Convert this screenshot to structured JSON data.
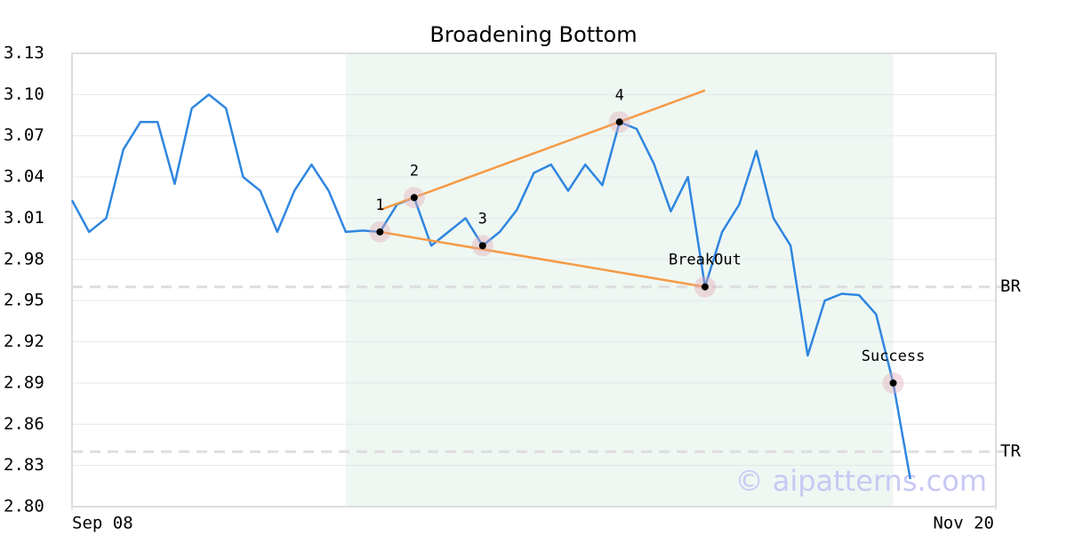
{
  "chart_data": {
    "type": "line",
    "title": "Broadening Bottom",
    "x": [
      0,
      1,
      2,
      3,
      4,
      5,
      6,
      7,
      8,
      9,
      10,
      11,
      12,
      13,
      14,
      15,
      16,
      17,
      18,
      19,
      20,
      21,
      22,
      23,
      24,
      25,
      26,
      27,
      28,
      29,
      30,
      31,
      32,
      33,
      34,
      35,
      36,
      37,
      38,
      39,
      40,
      41,
      42,
      43,
      44,
      45,
      46,
      47,
      48,
      49
    ],
    "series": [
      {
        "color": "#2f86e0",
        "values": [
          3.023,
          3.0,
          3.01,
          3.06,
          3.08,
          3.08,
          3.035,
          3.09,
          3.1,
          3.09,
          3.04,
          3.03,
          3.0,
          3.03,
          3.049,
          3.03,
          3.0,
          3.001,
          3.0,
          3.02,
          3.025,
          2.99,
          3.0,
          3.01,
          2.99,
          3.0,
          3.016,
          3.043,
          3.049,
          3.03,
          3.049,
          3.034,
          3.08,
          3.075,
          3.05,
          3.015,
          3.04,
          2.96,
          3.0,
          3.02,
          3.059,
          3.01,
          2.99,
          2.91,
          2.95,
          2.955,
          2.954,
          2.94,
          2.89,
          2.82
        ]
      }
    ],
    "xlim": [
      0,
      54
    ],
    "xticks": [
      {
        "value": 0,
        "label": "Sep 08"
      },
      {
        "value": 54,
        "label": "Nov 20"
      }
    ],
    "ylim": [
      2.8,
      3.13
    ],
    "yticks": [
      3.13,
      {
        "value": 3.1,
        "label": "3.10"
      },
      3.07,
      3.04,
      3.01,
      2.98,
      2.95,
      2.92,
      2.89,
      2.86,
      2.83,
      {
        "value": 2.8,
        "label": "2.80"
      }
    ],
    "grid": true,
    "pattern_region": [
      16,
      48
    ],
    "points": [
      {
        "label": "1",
        "x": 18,
        "value": 3.0
      },
      {
        "label": "2",
        "x": 20,
        "value": 3.025
      },
      {
        "label": "3",
        "x": 24,
        "value": 2.99
      },
      {
        "label": "4",
        "x": 32,
        "value": 3.08
      },
      {
        "label": "BreakOut",
        "x": 37,
        "value": 2.96
      },
      {
        "label": "Success",
        "x": 48,
        "value": 2.89
      }
    ],
    "trend_lines": [
      {
        "color": "#f59a45",
        "x": [
          18,
          37
        ],
        "values": [
          3.016,
          3.103
        ]
      },
      {
        "color": "#f59a45",
        "x": [
          18,
          37
        ],
        "values": [
          3.0,
          2.96
        ]
      }
    ],
    "levels": [
      {
        "label": "BR",
        "value": 2.96
      },
      {
        "label": "TR",
        "value": 2.84
      }
    ],
    "watermark": "© aipatterns.com"
  }
}
